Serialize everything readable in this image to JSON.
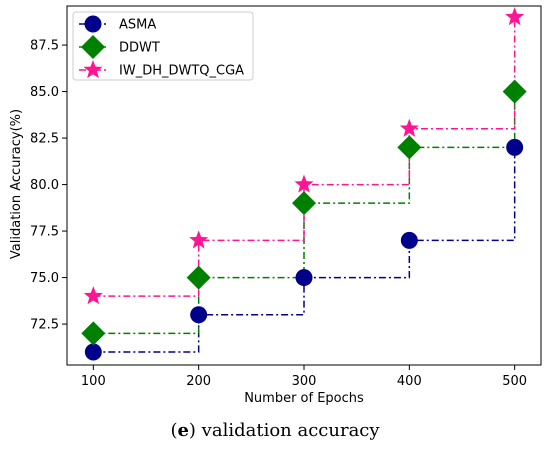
{
  "chart_data": {
    "type": "line",
    "xlabel": "Number of Epochs",
    "ylabel": "Validation Accuracy(%)",
    "x": [
      100,
      200,
      300,
      400,
      500
    ],
    "xlim": [
      75,
      525
    ],
    "ylim": [
      70.3,
      89.6
    ],
    "xticks": [
      "100",
      "200",
      "300",
      "400",
      "500"
    ],
    "yticks": [
      "72.5",
      "75.0",
      "77.5",
      "80.0",
      "82.5",
      "85.0",
      "87.5"
    ],
    "step": "post",
    "legend_position": "top-left",
    "series": [
      {
        "name": "ASMA",
        "values": [
          71,
          73,
          75,
          77,
          82
        ],
        "color": "#00008b",
        "marker": "circle",
        "linestyle": "dashdot"
      },
      {
        "name": "DDWT",
        "values": [
          72,
          75,
          79,
          82,
          85
        ],
        "color": "#008000",
        "marker": "diamond",
        "linestyle": "dashdot"
      },
      {
        "name": "IW_DH_DWTQ_CGA",
        "values": [
          74,
          77,
          80,
          83,
          89
        ],
        "color": "#ff1493",
        "marker": "star",
        "linestyle": "dashdot"
      }
    ]
  },
  "caption": {
    "label": "e",
    "text": " validation accuracy"
  }
}
